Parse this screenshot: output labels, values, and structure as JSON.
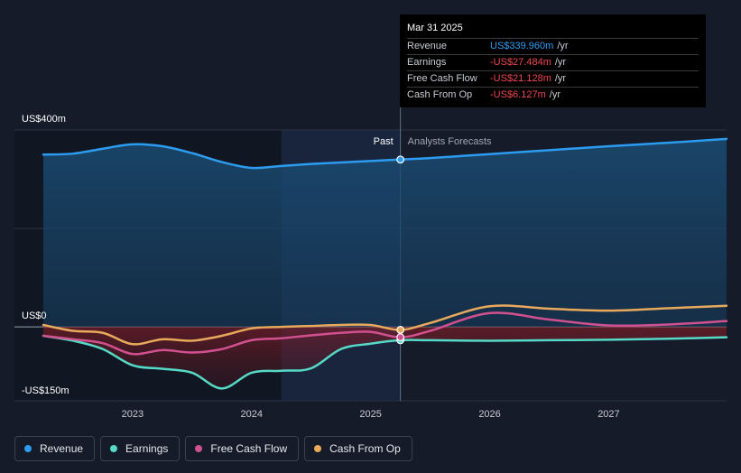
{
  "chart_data": {
    "type": "line",
    "y_unit_labels": {
      "top": "US$400m",
      "zero": "US$0",
      "bottom": "-US$150m"
    },
    "ylim": [
      -150,
      400
    ],
    "xlim": [
      2022.25,
      2027.99
    ],
    "x_ticks": [
      {
        "value": 2023,
        "label": "2023"
      },
      {
        "value": 2024,
        "label": "2024"
      },
      {
        "value": 2025,
        "label": "2025"
      },
      {
        "value": 2026,
        "label": "2026"
      },
      {
        "value": 2027,
        "label": "2027"
      }
    ],
    "past_label": "Past",
    "forecast_label": "Analysts Forecasts",
    "divider_x": 2025.25,
    "highlight_start_x": 2024.25,
    "series": [
      {
        "name": "Revenue",
        "color": "#2d9cf0",
        "fill": true,
        "x": [
          2022.25,
          2022.5,
          2022.75,
          2023.0,
          2023.25,
          2023.5,
          2023.75,
          2024.0,
          2024.25,
          2024.5,
          2024.75,
          2025.0,
          2025.25,
          2025.5,
          2026.0,
          2026.5,
          2027.0,
          2027.5,
          2027.99
        ],
        "y": [
          350,
          352,
          362,
          371,
          367,
          353,
          335,
          323,
          327,
          331,
          334,
          337,
          340,
          343,
          351,
          359,
          367,
          374,
          382
        ]
      },
      {
        "name": "Earnings",
        "color": "#56d9c6",
        "fill": true,
        "x": [
          2022.25,
          2022.5,
          2022.75,
          2023.0,
          2023.25,
          2023.5,
          2023.75,
          2024.0,
          2024.25,
          2024.5,
          2024.75,
          2025.0,
          2025.25,
          2025.5,
          2026.0,
          2026.5,
          2027.0,
          2027.5,
          2027.99
        ],
        "y": [
          -18,
          -28,
          -45,
          -78,
          -85,
          -93,
          -125,
          -93,
          -89,
          -84,
          -45,
          -34,
          -27,
          -27,
          -28,
          -27,
          -26,
          -24,
          -21
        ]
      },
      {
        "name": "Free Cash Flow",
        "color": "#d1508f",
        "fill": false,
        "x": [
          2022.25,
          2022.5,
          2022.75,
          2023.0,
          2023.25,
          2023.5,
          2023.75,
          2024.0,
          2024.25,
          2024.5,
          2024.75,
          2025.0,
          2025.25,
          2025.5,
          2026.0,
          2026.5,
          2027.0,
          2027.5,
          2027.99
        ],
        "y": [
          -18,
          -25,
          -33,
          -55,
          -47,
          -52,
          -45,
          -27,
          -23,
          -17,
          -12,
          -10,
          -21,
          -8,
          28,
          15,
          3,
          5,
          12
        ]
      },
      {
        "name": "Cash From Op",
        "color": "#e8a95c",
        "fill": false,
        "x": [
          2022.25,
          2022.5,
          2022.75,
          2023.0,
          2023.25,
          2023.5,
          2023.75,
          2024.0,
          2024.25,
          2024.5,
          2024.75,
          2025.0,
          2025.25,
          2025.5,
          2026.0,
          2026.5,
          2027.0,
          2027.5,
          2027.99
        ],
        "y": [
          4,
          -8,
          -12,
          -35,
          -25,
          -28,
          -18,
          -3,
          0,
          2,
          4,
          4,
          -6,
          8,
          42,
          37,
          33,
          38,
          43
        ]
      }
    ]
  },
  "tooltip": {
    "date": "Mar 31 2025",
    "rows": [
      {
        "label": "Revenue",
        "value": "US$339.960m",
        "unit": "/yr",
        "color": "#2d9cf0"
      },
      {
        "label": "Earnings",
        "value": "-US$27.484m",
        "unit": "/yr",
        "color": "#f0464f"
      },
      {
        "label": "Free Cash Flow",
        "value": "-US$21.128m",
        "unit": "/yr",
        "color": "#f0464f"
      },
      {
        "label": "Cash From Op",
        "value": "-US$6.127m",
        "unit": "/yr",
        "color": "#f0464f"
      }
    ]
  },
  "legend": [
    {
      "label": "Revenue",
      "color": "#2d9cf0"
    },
    {
      "label": "Earnings",
      "color": "#56d9c6"
    },
    {
      "label": "Free Cash Flow",
      "color": "#d1508f"
    },
    {
      "label": "Cash From Op",
      "color": "#e8a95c"
    }
  ]
}
